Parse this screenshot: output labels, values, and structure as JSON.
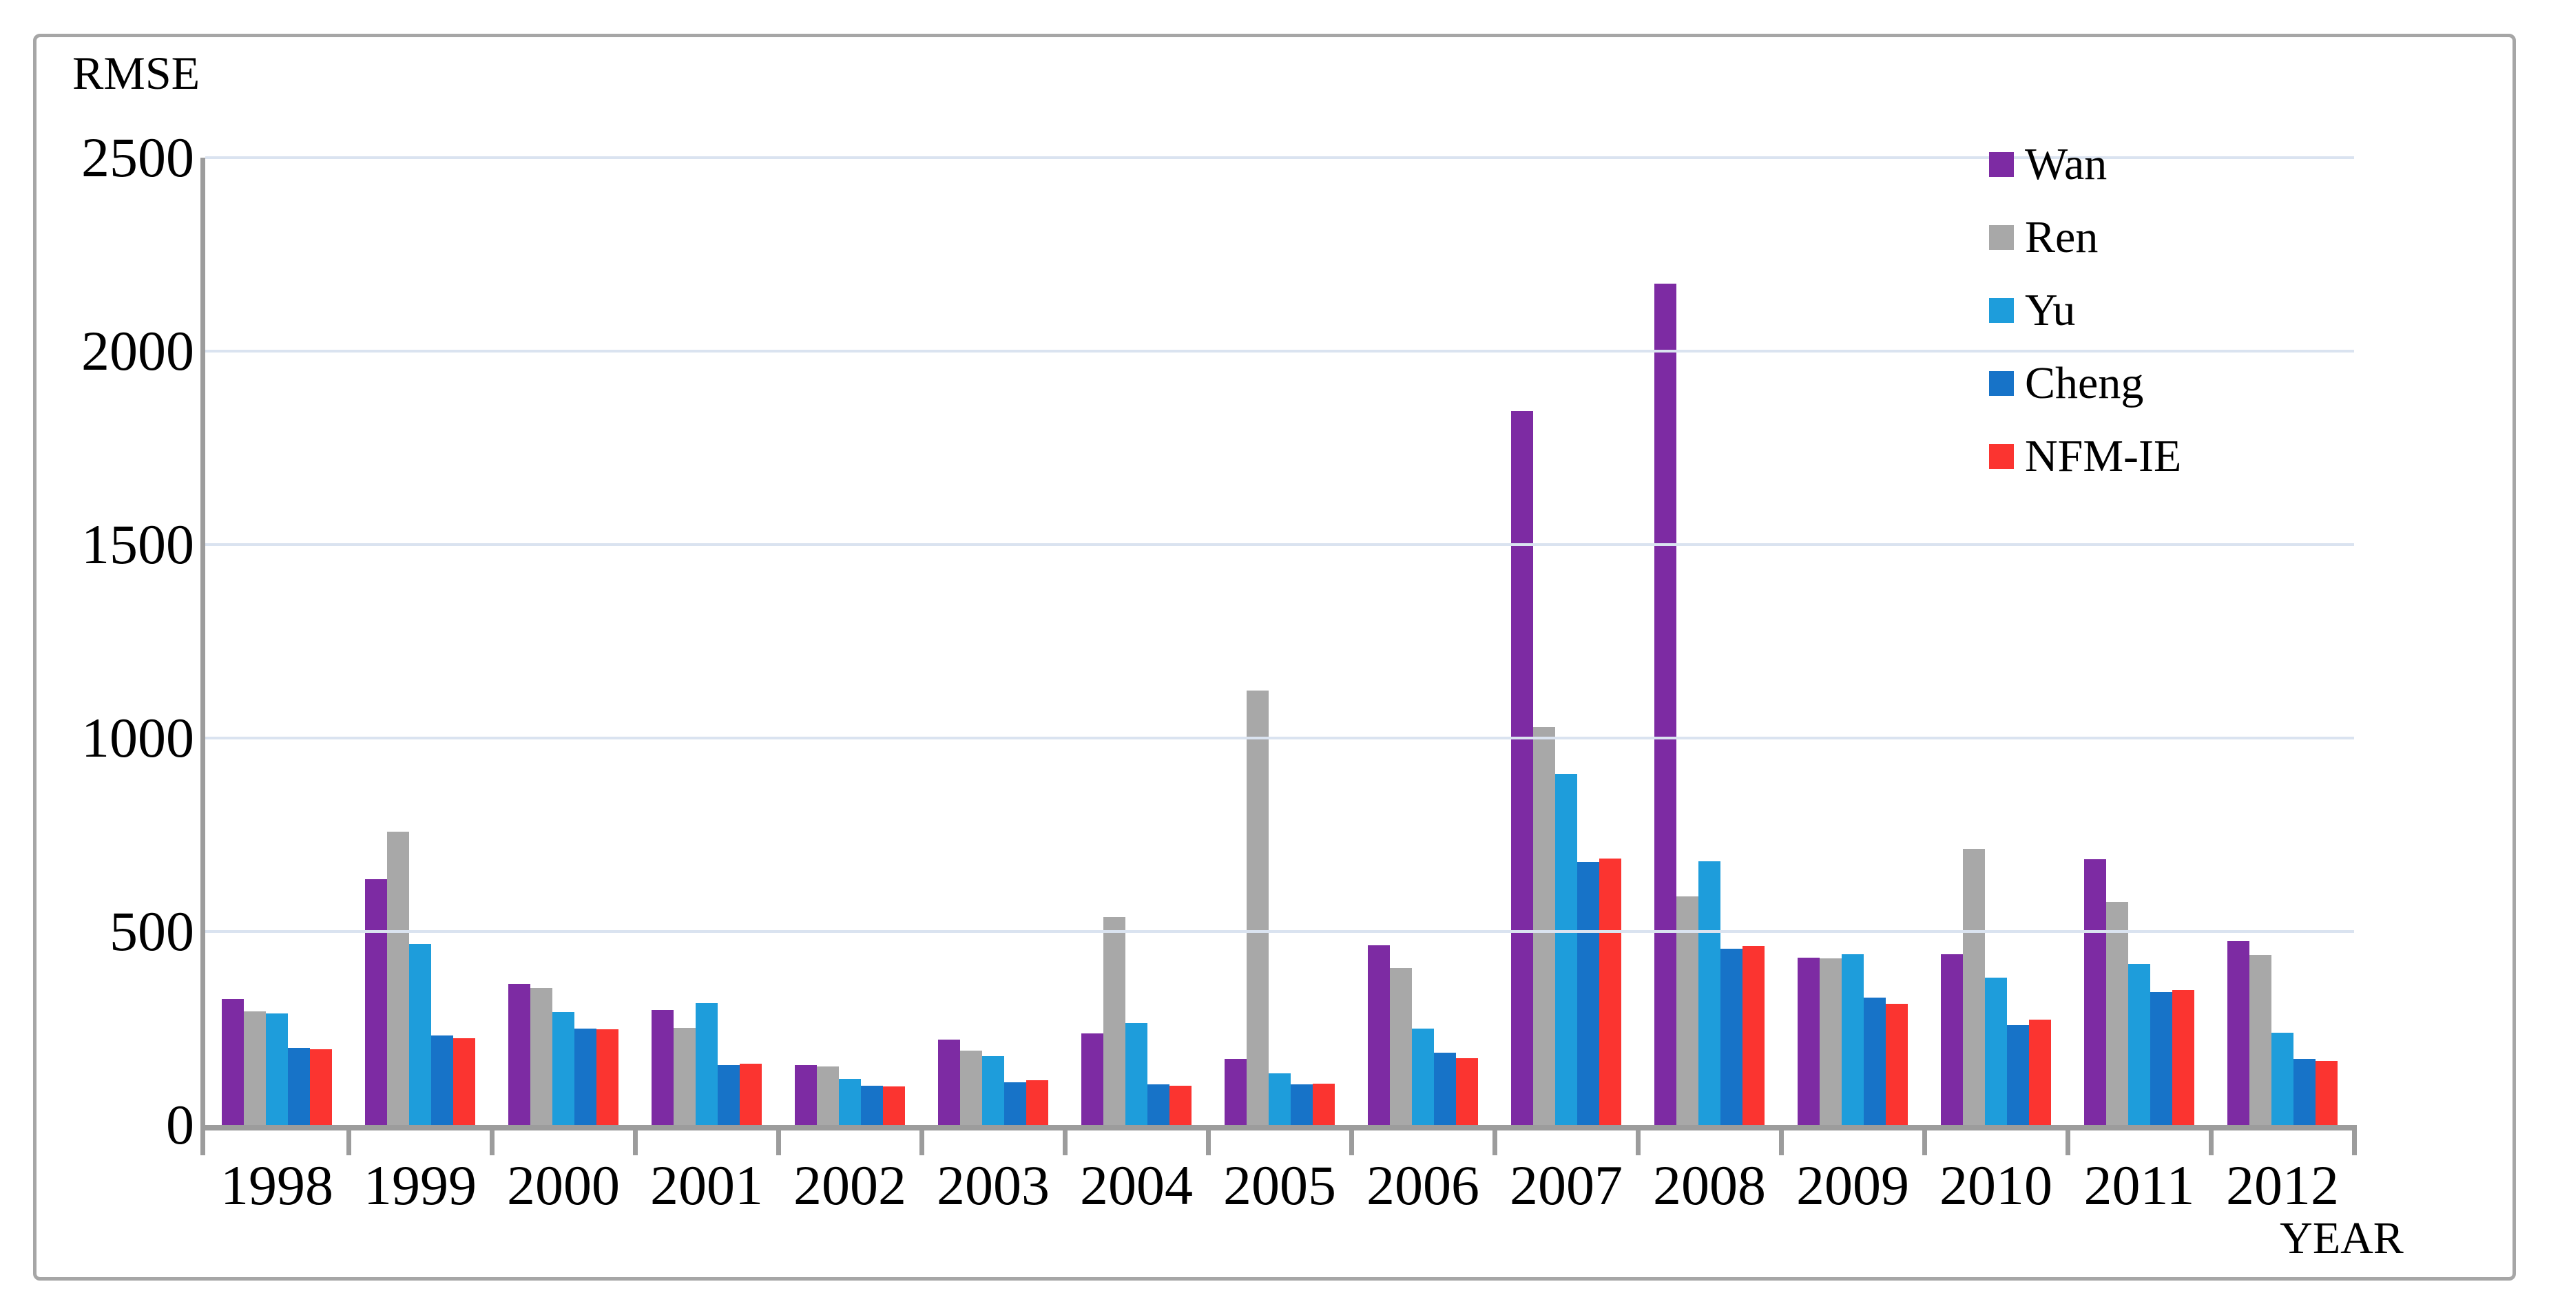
{
  "figure": {
    "y_axis_title": "RMSE",
    "x_axis_title": "YEAR"
  },
  "colors": {
    "grid": "#dae3f0",
    "axis": "#9c9c9c",
    "frame_border": "#a6a6a6",
    "background": "#ffffff"
  },
  "chart_data": {
    "type": "bar",
    "title": "",
    "xlabel": "YEAR",
    "ylabel": "RMSE",
    "ylim": [
      0,
      2500
    ],
    "yticks": [
      0,
      500,
      1000,
      1500,
      2000,
      2500
    ],
    "grid": true,
    "legend_position": "top-right",
    "categories": [
      "1998",
      "1999",
      "2000",
      "2001",
      "2002",
      "2003",
      "2004",
      "2005",
      "2006",
      "2007",
      "2008",
      "2009",
      "2010",
      "2011",
      "2012"
    ],
    "series": [
      {
        "name": "Wan",
        "color": "#7d2ba3",
        "values": [
          325,
          636,
          365,
          298,
          154,
          220,
          237,
          170,
          465,
          1845,
          2175,
          433,
          442,
          686,
          476
        ]
      },
      {
        "name": "Ren",
        "color": "#a8a8a8",
        "values": [
          293,
          758,
          354,
          251,
          151,
          192,
          538,
          1123,
          405,
          1028,
          590,
          430,
          714,
          577,
          440
        ]
      },
      {
        "name": "Yu",
        "color": "#1e9ddb",
        "values": [
          288,
          468,
          292,
          315,
          119,
          178,
          263,
          133,
          250,
          908,
          682,
          442,
          380,
          417,
          238
        ]
      },
      {
        "name": "Cheng",
        "color": "#1773c8",
        "values": [
          200,
          232,
          250,
          154,
          101,
          110,
          105,
          105,
          186,
          680,
          456,
          329,
          258,
          343,
          171
        ]
      },
      {
        "name": "NFM-IE",
        "color": "#fb3430",
        "values": [
          196,
          225,
          248,
          159,
          99,
          116,
          101,
          107,
          172,
          689,
          462,
          313,
          272,
          348,
          165
        ]
      }
    ]
  }
}
